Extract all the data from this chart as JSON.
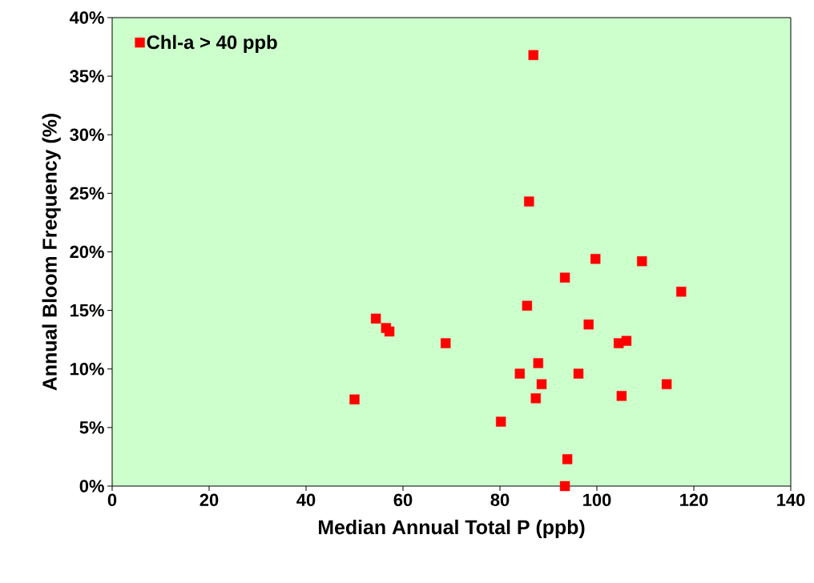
{
  "chart_data": {
    "type": "scatter",
    "xlabel": "Median Annual Total P (ppb)",
    "ylabel": "Annual Bloom Frequency (%)",
    "xlim": [
      0,
      140
    ],
    "xticks": [
      0,
      20,
      40,
      60,
      80,
      100,
      120,
      140
    ],
    "ylim": [
      0,
      40
    ],
    "yticks": [
      {
        "value": 0,
        "label": "0%"
      },
      {
        "value": 5,
        "label": "5%"
      },
      {
        "value": 10,
        "label": "10%"
      },
      {
        "value": 15,
        "label": "15%"
      },
      {
        "value": 20,
        "label": "20%"
      },
      {
        "value": 25,
        "label": "25%"
      },
      {
        "value": 30,
        "label": "30%"
      },
      {
        "value": 35,
        "label": "35%"
      },
      {
        "value": 40,
        "label": "40%"
      }
    ],
    "grid": false,
    "legend": "top left",
    "marker": "square",
    "series": [
      {
        "name": "Chl-a > 40 ppb",
        "color": "#ff0000",
        "x": [
          50,
          54.4,
          56.5,
          57.2,
          68.8,
          80.2,
          84.1,
          85.6,
          86.0,
          86.9,
          87.4,
          87.9,
          88.6,
          93.4,
          93.4,
          93.9,
          96.2,
          98.3,
          99.7,
          104.5,
          105.1,
          106.1,
          109.3,
          114.4,
          117.4
        ],
        "values": [
          7.4,
          14.3,
          13.5,
          13.2,
          12.2,
          5.5,
          9.6,
          15.4,
          24.3,
          36.8,
          7.5,
          10.5,
          8.7,
          17.8,
          0,
          2.3,
          9.6,
          13.8,
          19.4,
          12.2,
          7.7,
          12.4,
          19.2,
          8.7,
          16.6
        ]
      }
    ]
  }
}
